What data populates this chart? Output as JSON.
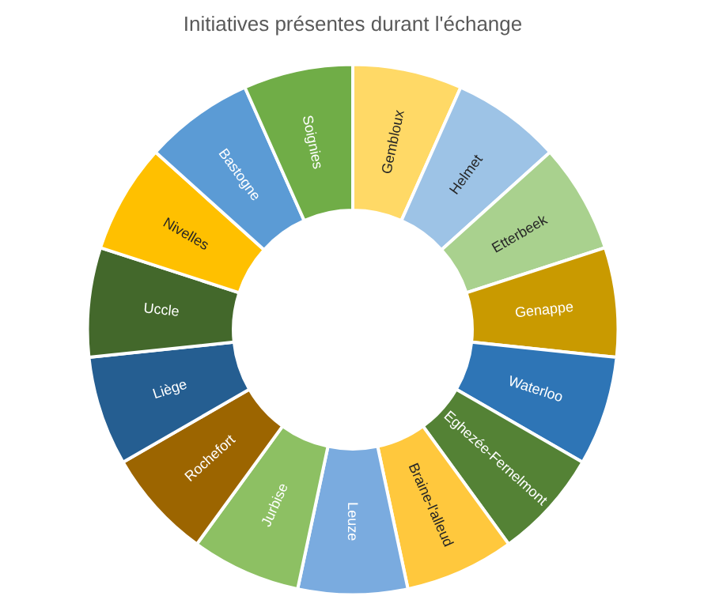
{
  "chart_data": {
    "type": "donut",
    "title": "Initiatives présentes durant l'échange",
    "categories": [
      "Gembloux",
      "Helmet",
      "Etterbeek",
      "Genappe",
      "Waterloo",
      "Eghezée-Fernelmont",
      "Braine-l'alleud",
      "Leuze",
      "Jurbise",
      "Rochefort",
      "Liège",
      "Uccle",
      "Nivelles",
      "Bastogne",
      "Soignies"
    ],
    "values": [
      6.6667,
      6.6667,
      6.6667,
      6.6667,
      6.6667,
      6.6667,
      6.6667,
      6.6667,
      6.6667,
      6.6667,
      6.6667,
      6.6667,
      6.6667,
      6.6667,
      6.6667
    ],
    "colors": [
      "#ffd966",
      "#9dc3e6",
      "#a9d18e",
      "#c99a00",
      "#2e75b6",
      "#548235",
      "#ffc83d",
      "#7aabdf",
      "#8dc063",
      "#9c6500",
      "#255e91",
      "#43682b",
      "#ffc000",
      "#5b9bd5",
      "#70ad47"
    ]
  }
}
